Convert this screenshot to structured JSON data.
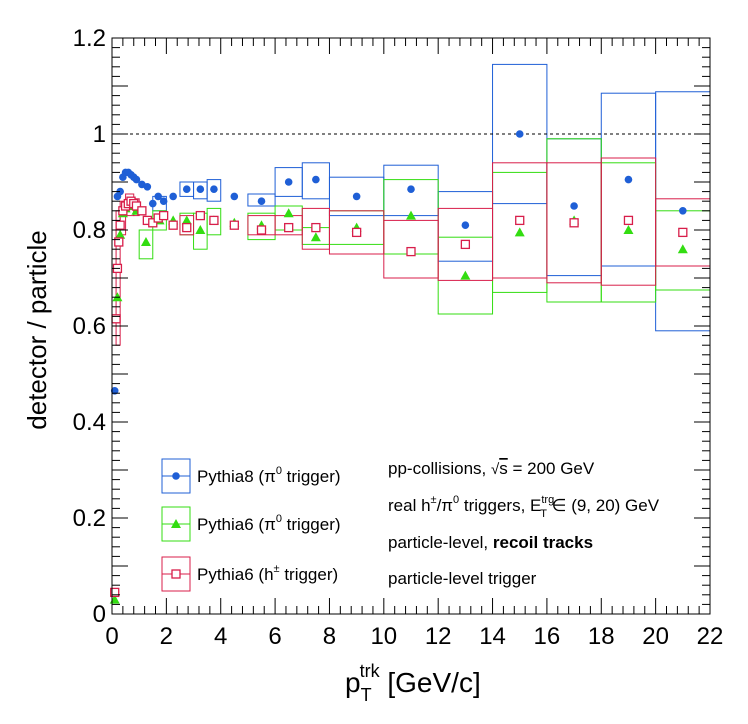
{
  "chart_data": {
    "type": "scatter",
    "xlabel": {
      "main": "p",
      "sup": "trk",
      "sub": "T",
      "unit": " [GeV/c]"
    },
    "ylabel": "detector / particle",
    "xlim": [
      0,
      22
    ],
    "ylim": [
      0,
      1.2
    ],
    "x_ticks": [
      "0",
      "2",
      "4",
      "6",
      "8",
      "10",
      "12",
      "14",
      "16",
      "18",
      "20",
      "22"
    ],
    "y_ticks": [
      "0",
      "0.2",
      "0.4",
      "0.6",
      "0.8",
      "1",
      "1.2"
    ],
    "reference_line": 1.0,
    "grid": false,
    "legend_position": "bottom-left",
    "series": [
      {
        "name": "Pythia8 (π⁰ trigger)",
        "legend_parts": [
          "Pythia8 (π",
          "0",
          " trigger)"
        ],
        "color": "#1f5fd6",
        "marker": "circle",
        "points": [
          [
            0.1,
            0.465
          ],
          [
            0.2,
            0.87
          ],
          [
            0.3,
            0.88
          ],
          [
            0.4,
            0.91
          ],
          [
            0.5,
            0.92
          ],
          [
            0.6,
            0.92
          ],
          [
            0.7,
            0.915
          ],
          [
            0.8,
            0.91
          ],
          [
            0.9,
            0.905
          ],
          [
            1.1,
            0.895
          ],
          [
            1.3,
            0.89
          ],
          [
            1.5,
            0.855
          ],
          [
            1.7,
            0.87
          ],
          [
            1.9,
            0.86
          ],
          [
            2.25,
            0.87
          ],
          [
            2.75,
            0.885
          ],
          [
            3.25,
            0.885
          ],
          [
            3.75,
            0.885
          ],
          [
            4.5,
            0.87
          ],
          [
            5.5,
            0.86
          ],
          [
            6.5,
            0.9
          ],
          [
            7.5,
            0.905
          ],
          [
            9.0,
            0.87
          ],
          [
            11.0,
            0.885
          ],
          [
            13.0,
            0.81
          ],
          [
            15.0,
            1.0
          ],
          [
            17.0,
            0.85
          ],
          [
            19.0,
            0.905
          ],
          [
            21.0,
            0.84
          ]
        ],
        "boxes": [
          [
            1.5,
            2.0,
            0.84,
            0.87
          ],
          [
            2.5,
            3.0,
            0.87,
            0.9
          ],
          [
            3.0,
            3.5,
            0.865,
            0.9
          ],
          [
            3.5,
            4.0,
            0.86,
            0.905
          ],
          [
            5.0,
            6.0,
            0.85,
            0.875
          ],
          [
            6.0,
            7.0,
            0.87,
            0.93
          ],
          [
            7.0,
            8.0,
            0.865,
            0.94
          ],
          [
            8.0,
            10.0,
            0.83,
            0.91
          ],
          [
            10.0,
            12.0,
            0.83,
            0.935
          ],
          [
            12.0,
            14.0,
            0.735,
            0.88
          ],
          [
            14.0,
            16.0,
            0.855,
            1.145
          ],
          [
            16.0,
            18.0,
            0.705,
            0.99
          ],
          [
            18.0,
            20.0,
            0.725,
            1.085
          ],
          [
            20.0,
            22.0,
            0.59,
            1.088
          ]
        ]
      },
      {
        "name": "Pythia6 (π⁰ trigger)",
        "legend_parts": [
          "Pythia6 (π",
          "0",
          " trigger)"
        ],
        "color": "#33dd11",
        "marker": "triangle",
        "points": [
          [
            0.1,
            0.03
          ],
          [
            0.2,
            0.66
          ],
          [
            0.3,
            0.79
          ],
          [
            0.4,
            0.835
          ],
          [
            0.5,
            0.845
          ],
          [
            0.7,
            0.85
          ],
          [
            0.9,
            0.84
          ],
          [
            1.25,
            0.775
          ],
          [
            1.75,
            0.82
          ],
          [
            2.25,
            0.82
          ],
          [
            2.75,
            0.82
          ],
          [
            3.25,
            0.8
          ],
          [
            3.75,
            0.82
          ],
          [
            4.5,
            0.815
          ],
          [
            5.5,
            0.81
          ],
          [
            6.5,
            0.835
          ],
          [
            7.5,
            0.785
          ],
          [
            9.0,
            0.805
          ],
          [
            11.0,
            0.83
          ],
          [
            13.0,
            0.705
          ],
          [
            15.0,
            0.795
          ],
          [
            17.0,
            0.82
          ],
          [
            19.0,
            0.8
          ],
          [
            21.0,
            0.76
          ]
        ],
        "boxes": [
          [
            1.0,
            1.5,
            0.74,
            0.8
          ],
          [
            1.5,
            2.0,
            0.8,
            0.84
          ],
          [
            2.5,
            3.0,
            0.79,
            0.835
          ],
          [
            3.0,
            3.5,
            0.76,
            0.835
          ],
          [
            3.5,
            4.0,
            0.79,
            0.845
          ],
          [
            5.0,
            6.0,
            0.78,
            0.835
          ],
          [
            6.0,
            7.0,
            0.8,
            0.85
          ],
          [
            7.0,
            8.0,
            0.77,
            0.805
          ],
          [
            8.0,
            10.0,
            0.77,
            0.84
          ],
          [
            10.0,
            12.0,
            0.75,
            0.905
          ],
          [
            12.0,
            14.0,
            0.625,
            0.785
          ],
          [
            14.0,
            16.0,
            0.67,
            0.92
          ],
          [
            16.0,
            18.0,
            0.65,
            0.99
          ],
          [
            18.0,
            20.0,
            0.65,
            0.94
          ],
          [
            20.0,
            22.0,
            0.675,
            0.84
          ]
        ]
      },
      {
        "name": "Pythia6 (h± trigger)",
        "legend_parts": [
          "Pythia6 (h",
          "±",
          " trigger)"
        ],
        "color": "#d81e4a",
        "marker": "open-square",
        "points": [
          [
            0.1,
            0.045
          ],
          [
            0.15,
            0.615
          ],
          [
            0.2,
            0.72
          ],
          [
            0.25,
            0.775
          ],
          [
            0.3,
            0.81
          ],
          [
            0.4,
            0.84
          ],
          [
            0.5,
            0.85
          ],
          [
            0.6,
            0.855
          ],
          [
            0.7,
            0.86
          ],
          [
            0.8,
            0.855
          ],
          [
            0.9,
            0.85
          ],
          [
            1.1,
            0.84
          ],
          [
            1.3,
            0.82
          ],
          [
            1.5,
            0.815
          ],
          [
            1.7,
            0.825
          ],
          [
            1.9,
            0.83
          ],
          [
            2.25,
            0.81
          ],
          [
            2.75,
            0.805
          ],
          [
            3.25,
            0.83
          ],
          [
            3.75,
            0.82
          ],
          [
            4.5,
            0.81
          ],
          [
            5.5,
            0.8
          ],
          [
            6.5,
            0.805
          ],
          [
            7.5,
            0.805
          ],
          [
            9.0,
            0.795
          ],
          [
            11.0,
            0.755
          ],
          [
            13.0,
            0.77
          ],
          [
            15.0,
            0.82
          ],
          [
            17.0,
            0.815
          ],
          [
            19.0,
            0.82
          ],
          [
            21.0,
            0.795
          ]
        ],
        "boxes": [
          [
            0.15,
            0.3,
            0.56,
            0.84
          ],
          [
            0.3,
            0.5,
            0.79,
            0.86
          ],
          [
            0.5,
            0.8,
            0.83,
            0.875
          ],
          [
            0.8,
            1.0,
            0.83,
            0.865
          ],
          [
            2.5,
            3.0,
            0.79,
            0.83
          ],
          [
            5.0,
            6.0,
            0.79,
            0.83
          ],
          [
            6.0,
            7.0,
            0.79,
            0.83
          ],
          [
            7.0,
            8.0,
            0.76,
            0.845
          ],
          [
            8.0,
            10.0,
            0.75,
            0.84
          ],
          [
            10.0,
            12.0,
            0.7,
            0.82
          ],
          [
            12.0,
            14.0,
            0.695,
            0.845
          ],
          [
            14.0,
            16.0,
            0.7,
            0.94
          ],
          [
            16.0,
            18.0,
            0.69,
            0.94
          ],
          [
            18.0,
            20.0,
            0.685,
            0.95
          ],
          [
            20.0,
            22.0,
            0.725,
            0.865
          ]
        ]
      }
    ],
    "annotations": [
      {
        "parts": [
          {
            "t": "pp-collisions, "
          },
          {
            "t": "√",
            "style": "sqrt"
          },
          {
            "t": "s",
            "style": "overline"
          },
          {
            "t": " = 200 GeV"
          }
        ]
      },
      {
        "parts": [
          {
            "t": "real h"
          },
          {
            "t": "±",
            "style": "sup"
          },
          {
            "t": "/π"
          },
          {
            "t": "0",
            "style": "sup"
          },
          {
            "t": " triggers, E"
          },
          {
            "t": "trg",
            "style": "sup"
          },
          {
            "t": "T",
            "style": "sub"
          },
          {
            "t": " ∈ (9, 20) GeV"
          }
        ]
      },
      {
        "parts": [
          {
            "t": "particle-level, "
          },
          {
            "t": "recoil tracks",
            "style": "bold"
          }
        ]
      },
      {
        "parts": [
          {
            "t": "particle-level trigger"
          }
        ]
      }
    ]
  }
}
